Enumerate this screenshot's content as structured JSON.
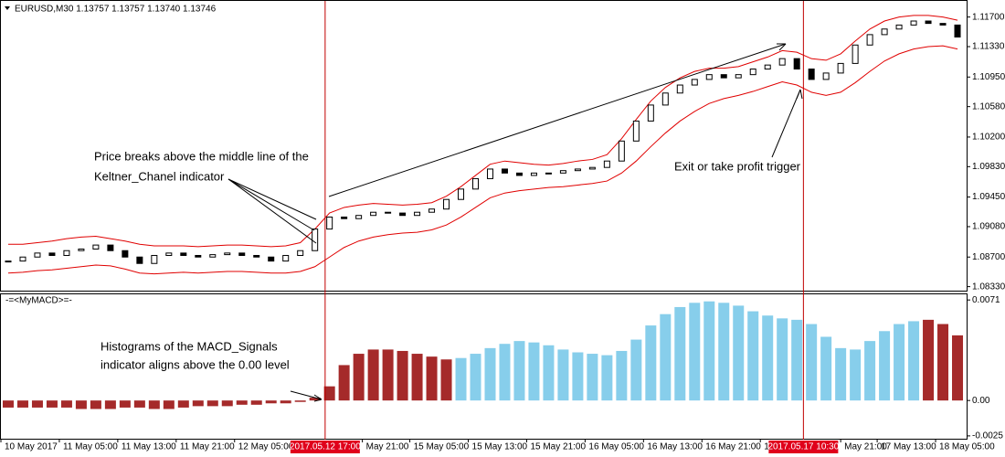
{
  "chart_data": [
    {
      "type": "candlestick",
      "title": "EURUSD,M30  1.13757 1.13757 1.13740 1.13746",
      "x": [
        1,
        3,
        5,
        7,
        9,
        11,
        13,
        15,
        17,
        19,
        21,
        23,
        25,
        27,
        29,
        31,
        33,
        35,
        37,
        39,
        41,
        43,
        45,
        47,
        49,
        51,
        53,
        55,
        57,
        59,
        61,
        63,
        65,
        67,
        69,
        71,
        73,
        75,
        77,
        79,
        81,
        83,
        85,
        87,
        89,
        91,
        93,
        95,
        97,
        99,
        101,
        103,
        105,
        107,
        109,
        111,
        113,
        115,
        117,
        119,
        121,
        123,
        125,
        127,
        129,
        131
      ],
      "close": [
        1.0865,
        1.087,
        1.0875,
        1.0872,
        1.0878,
        1.088,
        1.0885,
        1.0878,
        1.087,
        1.0862,
        1.0872,
        1.0875,
        1.0872,
        1.087,
        1.0873,
        1.0875,
        1.0872,
        1.087,
        1.0865,
        1.0872,
        1.0878,
        1.0905,
        1.092,
        1.0918,
        1.0922,
        1.0926,
        1.0925,
        1.0922,
        1.0926,
        1.093,
        1.0942,
        1.0955,
        1.0968,
        1.098,
        1.0975,
        1.0972,
        1.0975,
        1.0975,
        1.0978,
        1.098,
        1.0982,
        1.099,
        1.1015,
        1.104,
        1.106,
        1.1075,
        1.1085,
        1.1092,
        1.1098,
        1.1094,
        1.1098,
        1.1105,
        1.111,
        1.1118,
        1.1105,
        1.1092,
        1.11,
        1.1112,
        1.1135,
        1.1148,
        1.1155,
        1.116,
        1.1165,
        1.1162,
        1.116,
        1.1145
      ],
      "upper": [
        1.0886,
        1.0886,
        1.0888,
        1.089,
        1.0893,
        1.0895,
        1.0896,
        1.0893,
        1.089,
        1.0886,
        1.0884,
        1.0884,
        1.0884,
        1.0883,
        1.0884,
        1.0885,
        1.0885,
        1.0884,
        1.0883,
        1.0884,
        1.0888,
        1.0905,
        1.0925,
        1.0932,
        1.0935,
        1.0937,
        1.0936,
        1.0935,
        1.0936,
        1.0938,
        1.0946,
        1.0958,
        1.0972,
        1.0986,
        1.099,
        1.0988,
        1.0986,
        1.0985,
        1.0987,
        1.099,
        1.0992,
        1.0998,
        1.1018,
        1.1042,
        1.1065,
        1.1082,
        1.1094,
        1.1102,
        1.1106,
        1.1106,
        1.1108,
        1.1114,
        1.112,
        1.1128,
        1.1126,
        1.1118,
        1.1116,
        1.1124,
        1.114,
        1.1155,
        1.1165,
        1.117,
        1.1172,
        1.1172,
        1.117,
        1.1166
      ],
      "lower": [
        1.085,
        1.0851,
        1.0853,
        1.0854,
        1.0856,
        1.0858,
        1.086,
        1.0859,
        1.0855,
        1.085,
        1.0849,
        1.085,
        1.0851,
        1.085,
        1.0851,
        1.0852,
        1.0852,
        1.0851,
        1.085,
        1.085,
        1.0852,
        1.0858,
        1.087,
        1.0882,
        1.089,
        1.0895,
        1.0898,
        1.09,
        1.0901,
        1.0904,
        1.091,
        1.092,
        1.0932,
        1.0944,
        1.095,
        1.0953,
        1.0955,
        1.0957,
        1.0958,
        1.096,
        1.0962,
        1.0965,
        1.0975,
        1.099,
        1.1008,
        1.1025,
        1.104,
        1.1052,
        1.1062,
        1.1068,
        1.1072,
        1.1077,
        1.1083,
        1.1089,
        1.1085,
        1.1076,
        1.1072,
        1.1076,
        1.1088,
        1.1102,
        1.1115,
        1.1124,
        1.113,
        1.1133,
        1.1134,
        1.113
      ],
      "band_color": "#e00000",
      "xlim": [
        0,
        132.25
      ],
      "ylim": [
        1.0828,
        1.1189
      ],
      "yticks": [
        {
          "value": 1.117,
          "label": "1.11700"
        },
        {
          "value": 1.1133,
          "label": "1.11330"
        },
        {
          "value": 1.1095,
          "label": "1.10950"
        },
        {
          "value": 1.1058,
          "label": "1.10580"
        },
        {
          "value": 1.102,
          "label": "1.10200"
        },
        {
          "value": 1.0983,
          "label": "1.09830"
        },
        {
          "value": 1.0945,
          "label": "1.09450"
        },
        {
          "value": 1.0908,
          "label": "1.09080"
        },
        {
          "value": 1.087,
          "label": "1.08700"
        },
        {
          "value": 1.0833,
          "label": "1.08330"
        }
      ],
      "xticks": [
        {
          "value": 0,
          "label": "10 May 2017"
        },
        {
          "value": 8,
          "label": "11 May 05:00"
        },
        {
          "value": 16,
          "label": "11 May 13:00"
        },
        {
          "value": 24,
          "label": "11 May 21:00"
        },
        {
          "value": 32,
          "label": "12 May 05:00"
        },
        {
          "value": 49.5,
          "label": "May 21:00"
        },
        {
          "value": 56,
          "label": "15 May 05:00"
        },
        {
          "value": 64,
          "label": "15 May 13:00"
        },
        {
          "value": 72,
          "label": "15 May 21:00"
        },
        {
          "value": 80,
          "label": "16 May 05:00"
        },
        {
          "value": 88,
          "label": "16 May 13:00"
        },
        {
          "value": 96,
          "label": "16 May 21:00"
        },
        {
          "value": 104,
          "label": "1"
        },
        {
          "value": 115,
          "label": "May 21:00"
        },
        {
          "value": 120,
          "label": "17 May 13:00"
        },
        {
          "value": 128,
          "label": "18 May 05:00"
        }
      ],
      "cursor_lines": [
        {
          "value": 44.4,
          "label": "2017.05.12 17:00"
        },
        {
          "value": 109.9,
          "label": "2017.05.17 10:30"
        }
      ],
      "annotations": [
        [
          "Price breaks above the middle line of the",
          "Keltner_Chanel indicator"
        ],
        [
          "Exit or take profit trigger"
        ]
      ]
    },
    {
      "type": "bar",
      "title": "-=<MyMACD>=-",
      "x": [
        1,
        3,
        5,
        7,
        9,
        11,
        13,
        15,
        17,
        19,
        21,
        23,
        25,
        27,
        29,
        31,
        33,
        35,
        37,
        39,
        41,
        43,
        45,
        47,
        49,
        51,
        53,
        55,
        57,
        59,
        61,
        63,
        65,
        67,
        69,
        71,
        73,
        75,
        77,
        79,
        81,
        83,
        85,
        87,
        89,
        91,
        93,
        95,
        97,
        99,
        101,
        103,
        105,
        107,
        109,
        111,
        113,
        115,
        117,
        119,
        121,
        123,
        125,
        127,
        129,
        131
      ],
      "values": [
        -0.0005,
        -0.0005,
        -0.0005,
        -0.0005,
        -0.0005,
        -0.0006,
        -0.0006,
        -0.0006,
        -0.0005,
        -0.0005,
        -0.0006,
        -0.0006,
        -0.0005,
        -0.0004,
        -0.0004,
        -0.0004,
        -0.0003,
        -0.0003,
        -0.0002,
        -0.0002,
        -0.0001,
        0.0002,
        0.001,
        0.0025,
        0.0033,
        0.0036,
        0.0036,
        0.0035,
        0.0033,
        0.0031,
        0.0029,
        0.003,
        0.0033,
        0.0037,
        0.004,
        0.0042,
        0.0041,
        0.0039,
        0.0036,
        0.0034,
        0.0033,
        0.0032,
        0.0035,
        0.0043,
        0.0053,
        0.0061,
        0.0066,
        0.0069,
        0.007,
        0.0069,
        0.0067,
        0.0063,
        0.006,
        0.0058,
        0.0057,
        0.0054,
        0.0045,
        0.0037,
        0.0036,
        0.0042,
        0.0049,
        0.0054,
        0.0056,
        0.0057,
        0.0054,
        0.0046
      ],
      "colors": [
        "#a52a2a",
        "#a52a2a",
        "#a52a2a",
        "#a52a2a",
        "#a52a2a",
        "#a52a2a",
        "#a52a2a",
        "#a52a2a",
        "#a52a2a",
        "#a52a2a",
        "#a52a2a",
        "#a52a2a",
        "#a52a2a",
        "#a52a2a",
        "#a52a2a",
        "#a52a2a",
        "#a52a2a",
        "#a52a2a",
        "#a52a2a",
        "#a52a2a",
        "#a52a2a",
        "#a52a2a",
        "#a52a2a",
        "#a52a2a",
        "#a52a2a",
        "#a52a2a",
        "#a52a2a",
        "#a52a2a",
        "#a52a2a",
        "#a52a2a",
        "#a52a2a",
        "#87ceeb",
        "#87ceeb",
        "#87ceeb",
        "#87ceeb",
        "#87ceeb",
        "#87ceeb",
        "#87ceeb",
        "#87ceeb",
        "#87ceeb",
        "#87ceeb",
        "#87ceeb",
        "#87ceeb",
        "#87ceeb",
        "#87ceeb",
        "#87ceeb",
        "#87ceeb",
        "#87ceeb",
        "#87ceeb",
        "#87ceeb",
        "#87ceeb",
        "#87ceeb",
        "#87ceeb",
        "#87ceeb",
        "#87ceeb",
        "#87ceeb",
        "#87ceeb",
        "#87ceeb",
        "#87ceeb",
        "#87ceeb",
        "#87ceeb",
        "#87ceeb",
        "#87ceeb",
        "#a52a2a",
        "#a52a2a",
        "#a52a2a"
      ],
      "ylim": [
        -0.0027,
        0.0075
      ],
      "yticks": [
        0.0071,
        {
          "value": 0,
          "label": "0.00"
        },
        -0.0025
      ],
      "annotations": [
        [
          "Histograms of the MACD_Signals",
          "indicator aligns above the 0.00 level"
        ]
      ]
    }
  ]
}
